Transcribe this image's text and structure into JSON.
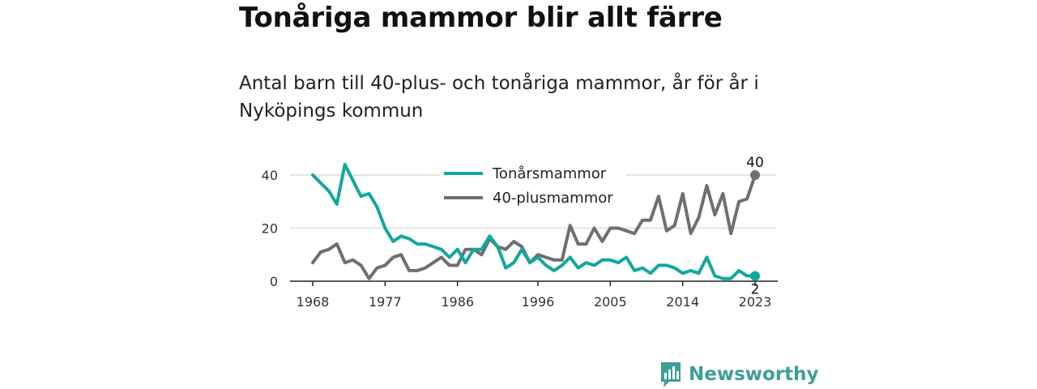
{
  "chart_data": {
    "type": "line",
    "title": "Tonåriga mammor blir allt färre",
    "subtitle": "Antal barn till 40-plus- och tonåriga mammor, år för år i Nyköpings kommun",
    "x": [
      1968,
      1969,
      1970,
      1971,
      1972,
      1973,
      1974,
      1975,
      1976,
      1977,
      1978,
      1979,
      1980,
      1981,
      1982,
      1983,
      1984,
      1985,
      1986,
      1987,
      1988,
      1989,
      1990,
      1991,
      1992,
      1993,
      1994,
      1995,
      1996,
      1997,
      1998,
      1999,
      2000,
      2001,
      2002,
      2003,
      2004,
      2005,
      2006,
      2007,
      2008,
      2009,
      2010,
      2011,
      2012,
      2013,
      2014,
      2015,
      2016,
      2017,
      2018,
      2019,
      2020,
      2021,
      2022,
      2023
    ],
    "series": [
      {
        "name": "Tonårsmammor",
        "color": "#12a79d",
        "values": [
          40,
          37,
          34,
          29,
          44,
          38,
          32,
          33,
          28,
          20,
          15,
          17,
          16,
          14,
          14,
          13,
          12,
          9,
          12,
          7,
          12,
          12,
          17,
          13,
          5,
          7,
          12,
          7,
          9,
          6,
          4,
          6,
          9,
          5,
          7,
          6,
          8,
          8,
          7,
          9,
          4,
          5,
          3,
          6,
          6,
          5,
          3,
          4,
          3,
          9,
          2,
          1,
          1,
          4,
          2,
          2
        ]
      },
      {
        "name": "40-plusmammor",
        "color": "#6e6e73",
        "values": [
          7,
          11,
          12,
          14,
          7,
          8,
          6,
          1,
          5,
          6,
          9,
          10,
          4,
          4,
          5,
          7,
          9,
          6,
          6,
          12,
          12,
          10,
          16,
          13,
          12,
          15,
          13,
          7,
          10,
          9,
          8,
          8,
          21,
          14,
          14,
          20,
          15,
          20,
          20,
          19,
          18,
          23,
          23,
          32,
          19,
          21,
          33,
          18,
          24,
          36,
          25,
          33,
          18,
          30,
          31,
          40
        ]
      }
    ],
    "x_ticks": [
      "1968",
      "1977",
      "1986",
      "1996",
      "2005",
      "2014",
      "2023"
    ],
    "x_tick_values": [
      1968,
      1977,
      1986,
      1996,
      2005,
      2014,
      2023
    ],
    "y_ticks": [
      "0",
      "20",
      "40"
    ],
    "y_tick_values": [
      0,
      20,
      40
    ],
    "ylim": [
      0,
      40
    ],
    "xlim": [
      1968,
      2023
    ],
    "grid": true,
    "legend": "top-center",
    "end_labels": {
      "Tonårsmammor": "2",
      "40-plusmammor": "40"
    }
  },
  "brand": {
    "name": "Newsworthy",
    "color": "#3e9e94",
    "icon": "bar-chart-icon"
  }
}
